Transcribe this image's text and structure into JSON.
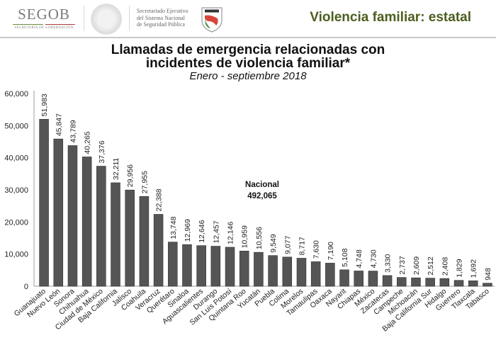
{
  "header": {
    "segob_name": "SEGOB",
    "segob_subtitle": "SECRETARÍA DE GOBERNACIÓN",
    "sesnsp_lines": [
      "Secretariado Ejecutivo",
      "del Sistema Nacional",
      "de Seguridad Pública"
    ],
    "page_heading": "Violencia familiar: estatal",
    "colors": {
      "heading": "#4d5e1f",
      "segob_line_green": "#6b8e3a",
      "segob_line_red": "#b03a3a"
    }
  },
  "chart_data": {
    "type": "bar",
    "title": "Llamadas de emergencia relacionadas con incidentes de violencia familiar*",
    "title_lines": [
      "Llamadas de emergencia relacionadas con",
      "incidentes de violencia familiar*"
    ],
    "subtitle": "Enero - septiembre 2018",
    "xlabel": "",
    "ylabel": "",
    "ylim": [
      0,
      60000
    ],
    "yticks": [
      0,
      10000,
      20000,
      30000,
      40000,
      50000,
      60000
    ],
    "ytick_labels": [
      "0",
      "10,000",
      "20,000",
      "30,000",
      "40,000",
      "50,000",
      "60,000"
    ],
    "grid": false,
    "bar_color": "#555555",
    "annotation": {
      "label": "Nacional",
      "value": "492,065"
    },
    "categories": [
      "Guanajuato",
      "Nuevo León",
      "Sonora",
      "Chihuahua",
      "Ciudad de México",
      "Baja California",
      "Jalisco",
      "Coahuila",
      "Veracruz",
      "Querétaro",
      "Sinaloa",
      "Aguascalientes",
      "Durango",
      "San Luis Potosí",
      "Quintana Roo",
      "Yucatán",
      "Puebla",
      "Colima",
      "Morelos",
      "Tamaulipas",
      "Oaxaca",
      "Nayarit",
      "Chiapas",
      "México",
      "Zacatecas",
      "Campeche",
      "Michoacán",
      "Baja California Sur",
      "Hidalgo",
      "Guerrero",
      "Tlaxcala",
      "Tabasco"
    ],
    "values": [
      51983,
      45847,
      43789,
      40265,
      37376,
      32211,
      29956,
      27955,
      22388,
      13748,
      12969,
      12646,
      12457,
      12146,
      10959,
      10556,
      9549,
      9077,
      8717,
      7630,
      7190,
      5108,
      4748,
      4730,
      3330,
      2737,
      2609,
      2512,
      2408,
      1829,
      1692,
      948
    ],
    "value_labels": [
      "51,983",
      "45,847",
      "43,789",
      "40,265",
      "37,376",
      "32,211",
      "29,956",
      "27,955",
      "22,388",
      "13,748",
      "12,969",
      "12,646",
      "12,457",
      "12,146",
      "10,959",
      "10,556",
      "9,549",
      "9,077",
      "8,717",
      "7,630",
      "7,190",
      "5,108",
      "4,748",
      "4,730",
      "3,330",
      "2,737",
      "2,609",
      "2,512",
      "2,408",
      "1,829",
      "1,692",
      "948"
    ]
  }
}
